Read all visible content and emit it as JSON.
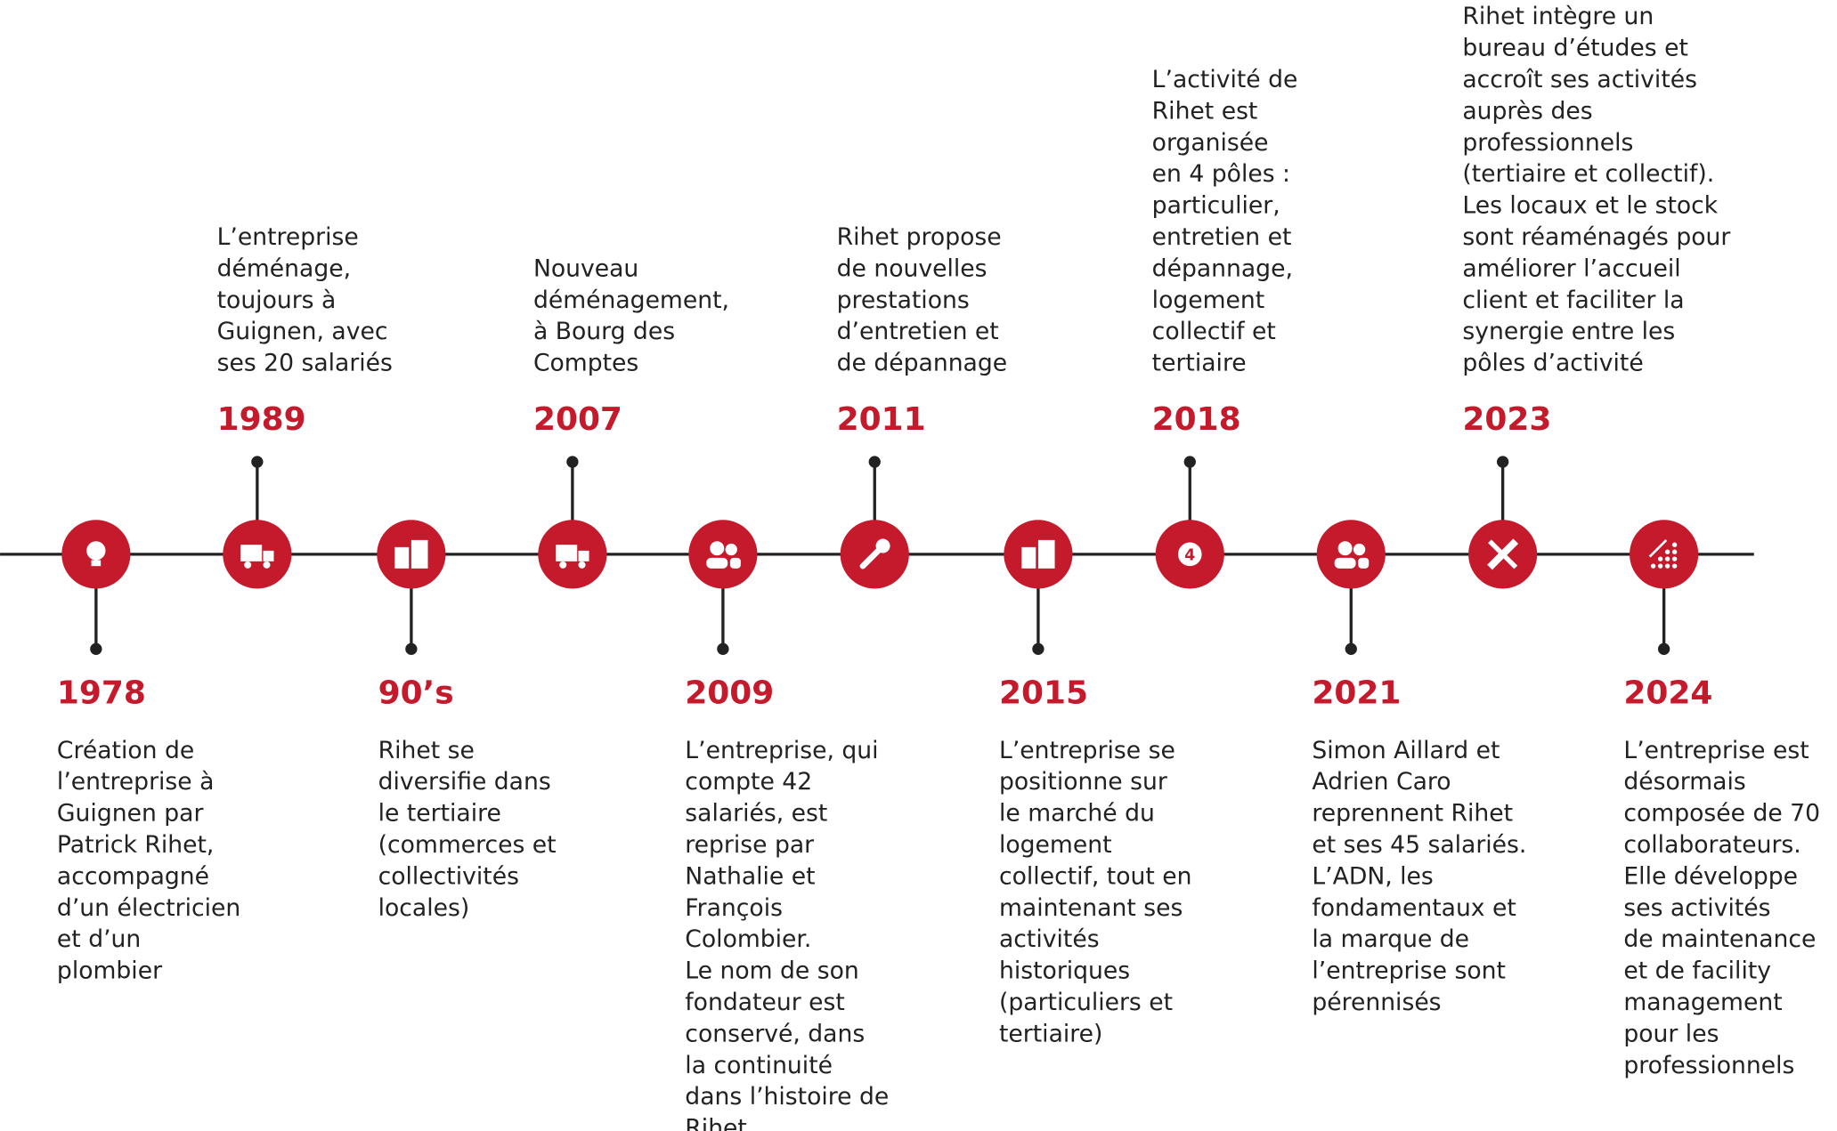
{
  "events": [
    {
      "year": "1978",
      "position": "below",
      "lines": [
        "Création de",
        "l’entreprise à",
        "Guignen par",
        "Patrick Rihet,",
        "accompagné",
        "d’un électricien",
        "et d’un",
        "plombier"
      ]
    },
    {
      "year": "1989",
      "position": "above",
      "lines": [
        "L’entreprise",
        "déménage,",
        "toujours à",
        "Guignen, avec",
        "ses 20 salariés"
      ]
    },
    {
      "year": "90’s",
      "position": "below",
      "lines": [
        "Rihet se",
        "diversifie dans",
        "le tertiaire",
        "(commerces et",
        "collectivités",
        "locales)"
      ]
    },
    {
      "year": "2007",
      "position": "above",
      "lines": [
        "Nouveau",
        "déménagement,",
        "à Bourg des",
        "Comptes"
      ]
    },
    {
      "year": "2009",
      "position": "below",
      "lines": [
        "L’entreprise, qui",
        "compte 42",
        "salariés, est",
        "reprise par",
        "Nathalie et",
        "François",
        "Colombier.",
        "Le nom de son",
        "fondateur est",
        "conservé, dans",
        "la continuité",
        "dans l’histoire de",
        "Rihet"
      ]
    },
    {
      "year": "2011",
      "position": "above",
      "lines": [
        "Rihet propose",
        "de nouvelles",
        "prestations",
        "d’entretien et",
        "de dépannage"
      ]
    },
    {
      "year": "2015",
      "position": "below",
      "lines": [
        "L’entreprise se",
        "positionne sur",
        "le marché du",
        "logement",
        "collectif, tout en",
        "maintenant ses",
        "activités",
        "historiques",
        "(particuliers et",
        "tertiaire)"
      ]
    },
    {
      "year": "2018",
      "position": "above",
      "icon_text": "4",
      "lines": [
        "L’activité de",
        "Rihet est",
        "organisée",
        "en 4 pôles :",
        "particulier,",
        "entretien et",
        "dépannage,",
        "logement",
        "collectif et",
        "tertiaire"
      ]
    },
    {
      "year": "2021",
      "position": "below",
      "lines": [
        "Simon Aillard et",
        "Adrien Caro",
        "reprennent Rihet",
        "et ses 45 salariés.",
        "L’ADN, les",
        "fondamentaux et",
        "la marque de",
        "l’entreprise sont",
        "pérennisés"
      ]
    },
    {
      "year": "2023",
      "position": "above",
      "lines": [
        "Rihet intègre un",
        "bureau d’études et",
        "accroît ses activités",
        "auprès des",
        "professionnels",
        "(tertiaire et collectif).",
        "Les locaux et le stock",
        "sont réaménagés pour",
        "améliorer l’accueil",
        "client et faciliter la",
        "synergie entre les",
        "pôles d’activité"
      ]
    },
    {
      "year": "2024",
      "position": "below",
      "lines": [
        "L’entreprise est",
        "désormais",
        "composée de 70",
        "collaborateurs.",
        "Elle développe",
        "ses activités",
        "de maintenance",
        "et de facility",
        "management",
        "pour les",
        "professionnels"
      ]
    }
  ]
}
